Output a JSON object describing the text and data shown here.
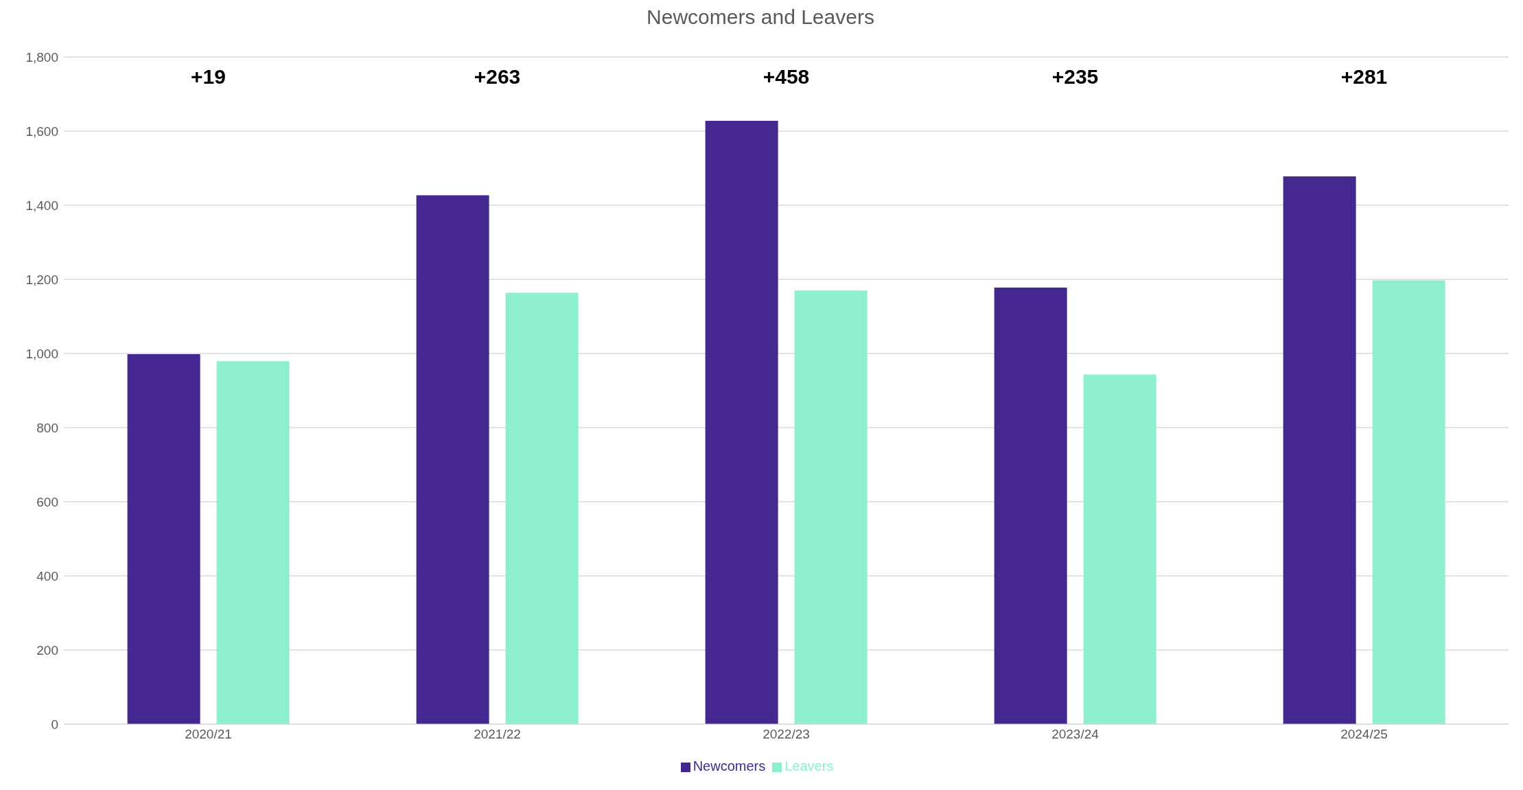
{
  "chart_data": {
    "type": "bar",
    "title": "Newcomers and Leavers",
    "categories": [
      "2020/21",
      "2021/22",
      "2022/23",
      "2023/24",
      "2024/25"
    ],
    "series": [
      {
        "name": "Newcomers",
        "color": "#44288f",
        "values": [
          998,
          1427,
          1628,
          1178,
          1478
        ]
      },
      {
        "name": "Leavers",
        "color": "#8eefcd",
        "values": [
          979,
          1164,
          1170,
          943,
          1197
        ]
      }
    ],
    "ylim": [
      0,
      1800
    ],
    "yticks": [
      {
        "value": 0,
        "label": "0"
      },
      {
        "value": 200,
        "label": "200"
      },
      {
        "value": 400,
        "label": "400"
      },
      {
        "value": 600,
        "label": "600"
      },
      {
        "value": 800,
        "label": "800"
      },
      {
        "value": 1000,
        "label": "1,000"
      },
      {
        "value": 1200,
        "label": "1,200"
      },
      {
        "value": 1400,
        "label": "1,400"
      },
      {
        "value": 1600,
        "label": "1,600"
      },
      {
        "value": 1800,
        "label": "1,800"
      }
    ],
    "grid": "y",
    "legend": "bottom",
    "annotations": [
      "+19",
      "+263",
      "+458",
      "+235",
      "+281"
    ]
  }
}
